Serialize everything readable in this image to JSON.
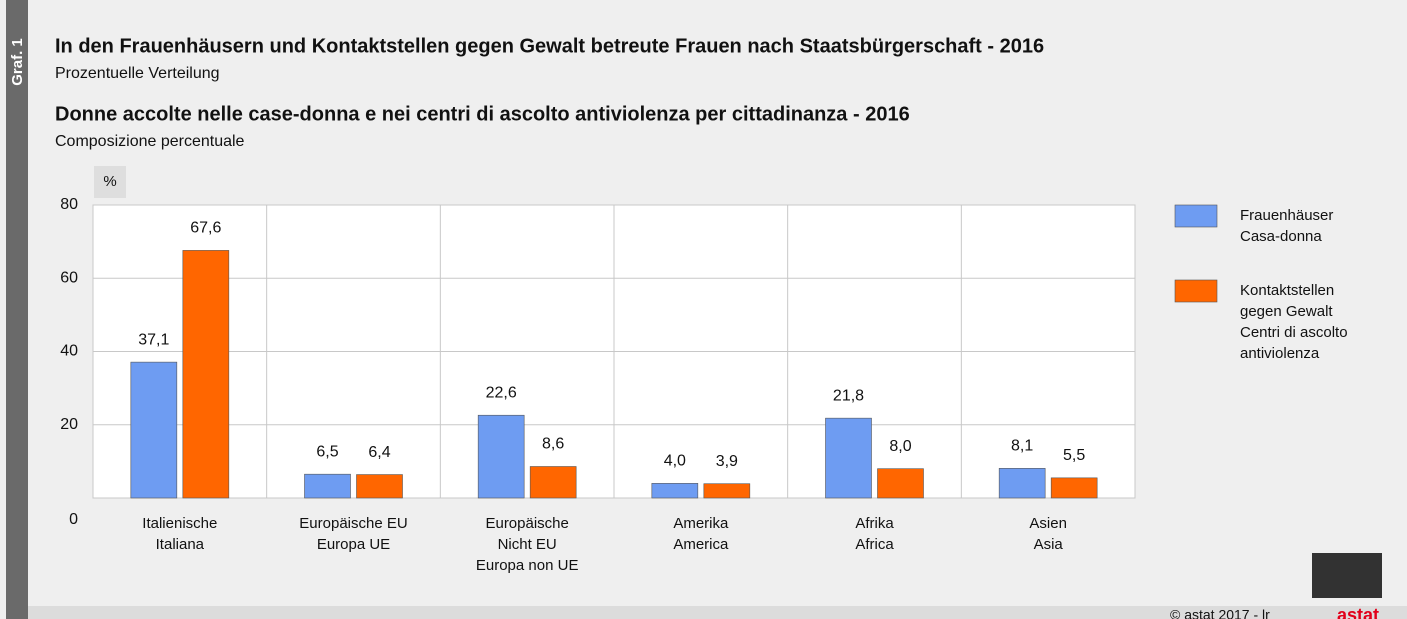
{
  "side_label": "Graf. 1",
  "footer": "© astat 2017 - lr",
  "logo": "astat",
  "chart_data": {
    "type": "bar",
    "titles": [
      {
        "title": "In den Frauenhäusern und Kontaktstellen gegen Gewalt betreute Frauen nach Staatsbürgerschaft - 2016",
        "subtitle": "Prozentuelle Verteilung"
      },
      {
        "title": "Donne accolte nelle case-donna e nei centri di ascolto antiviolenza per cittadinanza - 2016",
        "subtitle": "Composizione percentuale"
      }
    ],
    "y_unit": "%",
    "categories": [
      [
        "Italienische",
        "Italiana"
      ],
      [
        "Europäische EU",
        "Europa UE"
      ],
      [
        "Europäische",
        "Nicht EU",
        "Europa non UE"
      ],
      [
        "Amerika",
        "America"
      ],
      [
        "Afrika",
        "Africa"
      ],
      [
        "Asien",
        "Asia"
      ]
    ],
    "series": [
      {
        "name": [
          "Frauenhäuser",
          "Casa-donna"
        ],
        "color": "#6e9cf2",
        "values": [
          37.1,
          6.5,
          22.6,
          4.0,
          21.8,
          8.1
        ],
        "value_labels": [
          "37,1",
          "6,5",
          "22,6",
          "4,0",
          "21,8",
          "8,1"
        ]
      },
      {
        "name": [
          "Kontaktstellen",
          "gegen Gewalt",
          "Centri di ascolto",
          "antiviolenza"
        ],
        "color": "#ff6600",
        "values": [
          67.6,
          6.4,
          8.6,
          3.9,
          8.0,
          5.5
        ],
        "value_labels": [
          "67,6",
          "6,4",
          "8,6",
          "3,9",
          "8,0",
          "5,5"
        ]
      }
    ],
    "ylim": [
      0,
      80
    ],
    "yticks": [
      0,
      20,
      40,
      60,
      80
    ],
    "grid": true,
    "legend": "right"
  }
}
